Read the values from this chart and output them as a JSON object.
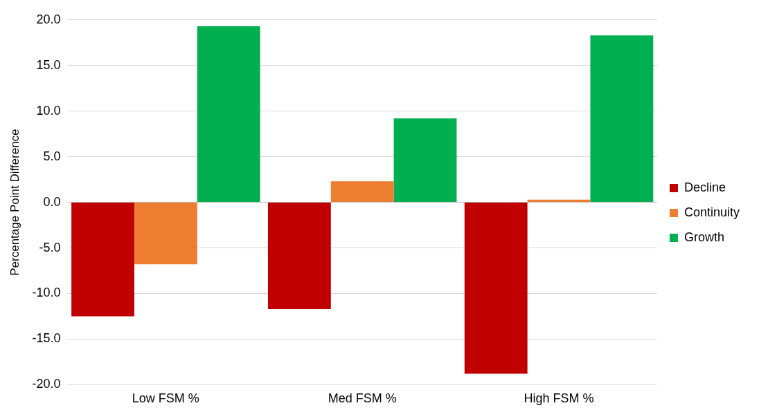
{
  "chart_data": {
    "type": "bar",
    "ylabel": "Percentage Point Difference",
    "categories": [
      "Low FSM %",
      "Med FSM %",
      "High FSM %"
    ],
    "series": [
      {
        "name": "Decline",
        "color": "#c00000",
        "values": [
          -12.5,
          -11.7,
          -18.8
        ]
      },
      {
        "name": "Continuity",
        "color": "#ed7d31",
        "values": [
          -6.8,
          2.3,
          0.3
        ]
      },
      {
        "name": "Growth",
        "color": "#00b050",
        "values": [
          19.3,
          9.2,
          18.3
        ]
      }
    ],
    "ylim": [
      -20,
      20
    ],
    "yticks": [
      {
        "value": -20,
        "label": "-20.0"
      },
      {
        "value": -15,
        "label": "-15.0"
      },
      {
        "value": -10,
        "label": "-10.0"
      },
      {
        "value": -5,
        "label": "-5.0"
      },
      {
        "value": 0,
        "label": "0.0"
      },
      {
        "value": 5,
        "label": "5.0"
      },
      {
        "value": 10,
        "label": "10.0"
      },
      {
        "value": 15,
        "label": "15.0"
      },
      {
        "value": 20,
        "label": "20.0"
      }
    ],
    "grid": "y",
    "legend": "right"
  }
}
